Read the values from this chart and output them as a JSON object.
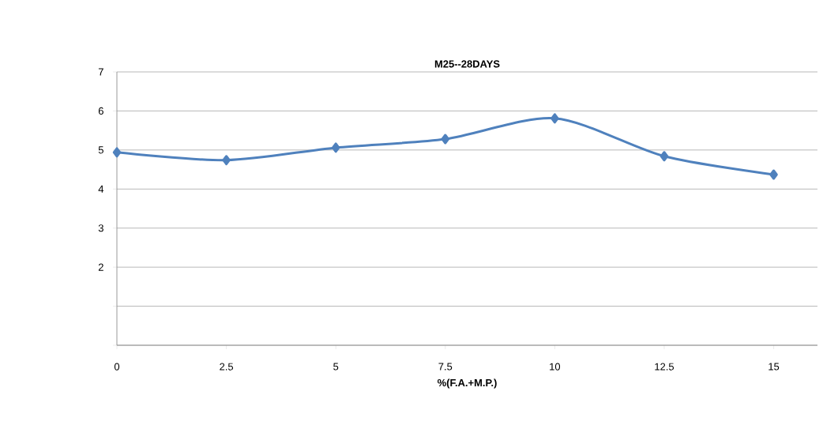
{
  "chart_data": {
    "type": "line",
    "title": "M25--28DAYS",
    "xlabel": "%(F.A.+M.P.)",
    "x": [
      0,
      2.5,
      5,
      7.5,
      10,
      12.5,
      15
    ],
    "series": [
      {
        "color": "#4f81bd",
        "values": [
          4.94,
          4.74,
          5.06,
          5.28,
          5.81,
          4.84,
          4.37
        ]
      }
    ],
    "xlim": [
      0,
      16
    ],
    "xticks": [
      0,
      2.5,
      5,
      7.5,
      10,
      12.5,
      15
    ],
    "ylim": [
      0,
      7
    ],
    "yticks": [
      {
        "value": 0,
        "label": null
      },
      {
        "value": 1,
        "label": null
      },
      2,
      3,
      4,
      5,
      6,
      7
    ],
    "grid": "y",
    "marker": "diamond",
    "line_style": "solid"
  }
}
